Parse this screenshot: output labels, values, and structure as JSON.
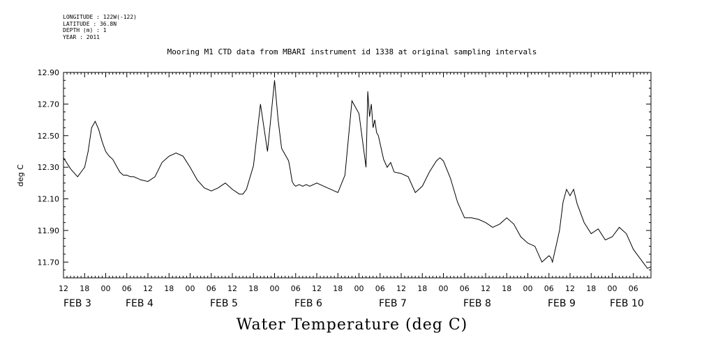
{
  "header": {
    "lines": [
      "LONGITUDE : 122W(-122)",
      "LATITUDE : 36.8N",
      "DEPTH (m) : 1",
      "YEAR : 2011"
    ]
  },
  "chart_data": {
    "type": "line",
    "title": "Mooring M1 CTD data from MBARI instrument id 1338 at original sampling intervals",
    "xlabel": "Water Temperature (deg C)",
    "ylabel": "deg C",
    "ylim": [
      11.6,
      12.9
    ],
    "yticks": [
      "12.90",
      "12.70",
      "12.50",
      "12.30",
      "12.10",
      "11.90",
      "11.70"
    ],
    "xlim_hours": [
      12,
      179
    ],
    "hour_ticks": [
      "12",
      "18",
      "00",
      "06",
      "12",
      "18",
      "00",
      "06",
      "12",
      "18",
      "00",
      "06",
      "12",
      "18",
      "00",
      "06",
      "12",
      "18",
      "00",
      "06",
      "12",
      "18",
      "00",
      "06",
      "12",
      "18",
      "00",
      "06"
    ],
    "day_labels": [
      "FEB  3",
      "FEB  4",
      "FEB  5",
      "FEB  6",
      "FEB  7",
      "FEB  8",
      "FEB  9",
      "FEB 10"
    ],
    "series": [
      {
        "x": [
          12,
          14,
          16,
          17,
          18,
          19,
          20,
          21,
          22,
          23,
          24,
          25,
          26,
          27,
          28,
          29,
          30,
          31,
          32,
          34,
          36,
          38,
          40,
          42,
          44,
          46,
          48,
          50,
          52,
          54,
          56,
          58,
          60,
          62,
          63,
          64,
          66,
          68,
          70,
          72,
          73,
          74,
          75,
          75.5,
          76,
          76.5,
          77,
          77.5,
          78,
          79,
          80,
          81,
          82,
          84,
          86,
          88,
          90,
          92,
          94,
          96,
          98,
          98.5,
          99,
          99.5,
          100,
          100.5,
          101,
          101.5,
          102,
          102.5,
          103,
          104,
          105,
          106,
          108,
          110,
          112,
          114,
          116,
          118,
          119,
          120,
          122,
          124,
          126,
          128,
          130,
          132,
          134,
          136,
          138,
          140,
          142,
          144,
          146,
          148,
          150,
          150.5,
          151,
          151.5,
          152,
          153,
          154,
          155,
          156,
          157,
          158,
          160,
          162,
          164,
          166,
          168,
          170,
          172,
          174,
          176,
          178,
          179
        ],
        "y": [
          12.36,
          12.29,
          12.24,
          12.27,
          12.3,
          12.4,
          12.55,
          12.59,
          12.54,
          12.46,
          12.4,
          12.37,
          12.35,
          12.31,
          12.27,
          12.25,
          12.25,
          12.24,
          12.24,
          12.22,
          12.21,
          12.24,
          12.33,
          12.37,
          12.39,
          12.37,
          12.3,
          12.22,
          12.17,
          12.15,
          12.17,
          12.2,
          12.16,
          12.13,
          12.13,
          12.16,
          12.31,
          12.7,
          12.4,
          12.85,
          12.6,
          12.42,
          12.38,
          12.36,
          12.34,
          12.28,
          12.21,
          12.19,
          12.18,
          12.19,
          12.18,
          12.19,
          12.18,
          12.2,
          12.18,
          12.16,
          12.14,
          12.25,
          12.72,
          12.64,
          12.3,
          12.78,
          12.62,
          12.7,
          12.55,
          12.6,
          12.52,
          12.5,
          12.45,
          12.4,
          12.35,
          12.3,
          12.33,
          12.27,
          12.26,
          12.24,
          12.14,
          12.18,
          12.27,
          12.34,
          12.36,
          12.34,
          12.23,
          12.08,
          11.98,
          11.98,
          11.97,
          11.95,
          11.92,
          11.94,
          11.98,
          11.94,
          11.86,
          11.82,
          11.8,
          11.7,
          11.74,
          11.73,
          11.7,
          11.75,
          11.8,
          11.9,
          12.08,
          12.16,
          12.12,
          12.16,
          12.07,
          11.95,
          11.88,
          11.91,
          11.84,
          11.86,
          11.92,
          11.88,
          11.78,
          11.72,
          11.66,
          11.67
        ]
      }
    ]
  }
}
